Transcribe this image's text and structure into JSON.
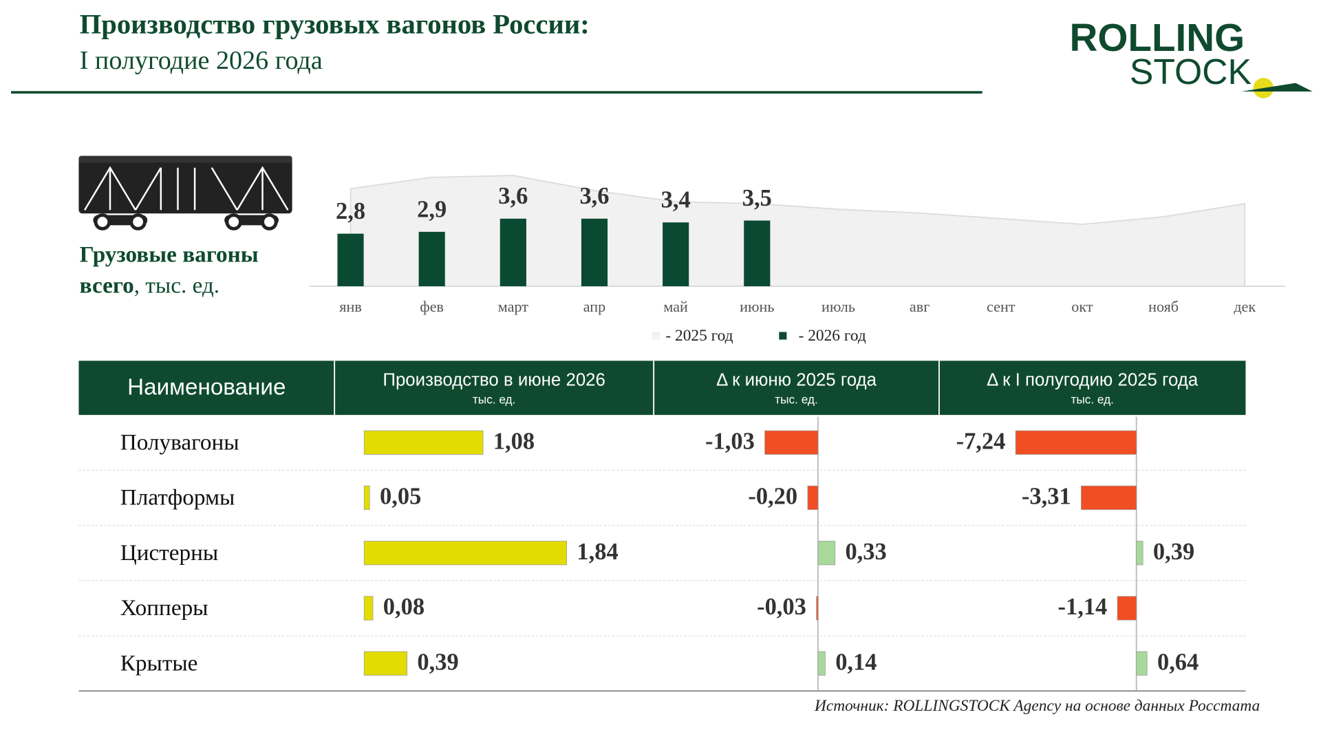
{
  "header": {
    "title": "Производство грузовых вагонов России:",
    "subtitle": "I полугодие 2026 года"
  },
  "logo": {
    "line1": "ROLLING",
    "line2": "STOCK"
  },
  "chart_data": {
    "type": "bar",
    "label": [
      "Грузовые вагоны",
      "всего",
      ", тыс. ед."
    ],
    "categories": [
      "янв",
      "фев",
      "март",
      "апр",
      "май",
      "июнь",
      "июль",
      "авг",
      "сент",
      "окт",
      "нояб",
      "дек"
    ],
    "series": [
      {
        "name": "- 2025 год",
        "type": "area",
        "color": "#f1f1f1",
        "values": [
          5.2,
          5.8,
          5.9,
          5.1,
          4.5,
          4.4,
          4.1,
          3.9,
          3.6,
          3.3,
          3.7,
          4.4
        ]
      },
      {
        "name": "- 2026 год",
        "type": "bar",
        "color": "#0b4a32",
        "values": [
          2.8,
          2.9,
          3.6,
          3.6,
          3.4,
          3.5,
          null,
          null,
          null,
          null,
          null,
          null
        ],
        "value_labels": [
          "2,8",
          "2,9",
          "3,6",
          "3,6",
          "3,4",
          "3,5",
          null,
          null,
          null,
          null,
          null,
          null
        ]
      }
    ],
    "ylim": [
      0,
      6
    ]
  },
  "table": {
    "columns": [
      {
        "title": "Наименование"
      },
      {
        "title": "Производство в июне 2026",
        "unit": "тыс. ед.",
        "positive": "#e2dc00",
        "negative": "#e2dc00"
      },
      {
        "title": "Δ   к  июню 2025 года",
        "unit": "тыс. ед.",
        "positive": "#a8d99a",
        "negative": "#f04e23"
      },
      {
        "title": "Δ к I полугодию 2025 года",
        "unit": "тыс. ед.",
        "positive": "#a8d99a",
        "negative": "#f04e23"
      }
    ],
    "rows": [
      {
        "name": "Полувагоны",
        "values": [
          1.08,
          -1.03,
          -7.24
        ],
        "value_labels": [
          "1,08",
          "-1,03",
          "-7,24"
        ]
      },
      {
        "name": "Платформы",
        "values": [
          0.05,
          -0.2,
          -3.31
        ],
        "value_labels": [
          "0,05",
          "-0,20",
          "-3,31"
        ]
      },
      {
        "name": "Цистерны",
        "values": [
          1.84,
          0.33,
          0.39
        ],
        "value_labels": [
          "1,84",
          "0,33",
          "0,39"
        ]
      },
      {
        "name": "Хопперы",
        "values": [
          0.08,
          -0.03,
          -1.14
        ],
        "value_labels": [
          "0,08",
          "-0,03",
          "-1,14"
        ]
      },
      {
        "name": "Крытые",
        "values": [
          0.39,
          0.14,
          0.64
        ],
        "value_labels": [
          "0,39",
          "0,14",
          "0,64"
        ]
      }
    ]
  },
  "source": "Источник: ROLLINGSTOCK Agency на основе данных Росстата"
}
